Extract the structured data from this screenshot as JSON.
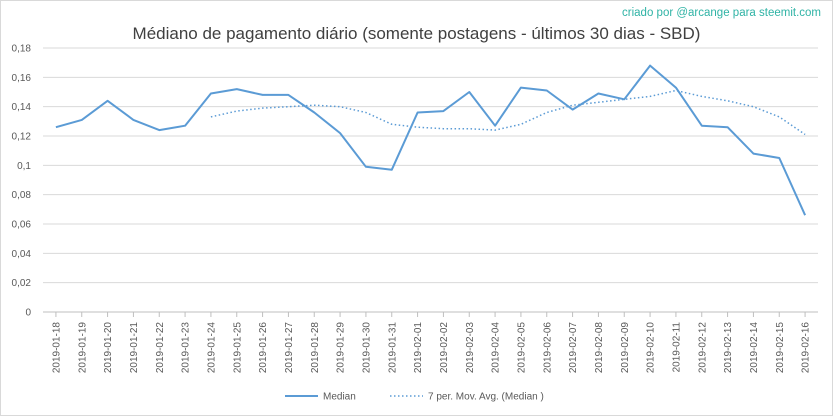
{
  "credit": "criado por @arcange para steemit.com",
  "chart_data": {
    "type": "line",
    "title": "Médiano de pagamento diário (somente postagens - últimos 30 dias - SBD)",
    "xlabel": "",
    "ylabel": "",
    "ylim": [
      0,
      0.18
    ],
    "yticks": [
      "0",
      "0,02",
      "0,04",
      "0,06",
      "0,08",
      "0,1",
      "0,12",
      "0,14",
      "0,16",
      "0,18"
    ],
    "grid": "horizontal",
    "legend_position": "bottom",
    "categories": [
      "2019-01-18",
      "2019-01-19",
      "2019-01-20",
      "2019-01-21",
      "2019-01-22",
      "2019-01-23",
      "2019-01-24",
      "2019-01-25",
      "2019-01-26",
      "2019-01-27",
      "2019-01-28",
      "2019-01-29",
      "2019-01-30",
      "2019-01-31",
      "2019-02-01",
      "2019-02-02",
      "2019-02-03",
      "2019-02-04",
      "2019-02-05",
      "2019-02-06",
      "2019-02-07",
      "2019-02-08",
      "2019-02-09",
      "2019-02-10",
      "2019-02-11",
      "2019-02-12",
      "2019-02-13",
      "2019-02-14",
      "2019-02-15",
      "2019-02-16"
    ],
    "series": [
      {
        "name": "Median",
        "style": "solid",
        "color": "#5b9bd5",
        "values": [
          0.126,
          0.131,
          0.144,
          0.131,
          0.124,
          0.127,
          0.149,
          0.152,
          0.148,
          0.148,
          0.136,
          0.122,
          0.099,
          0.097,
          0.136,
          0.137,
          0.15,
          0.127,
          0.153,
          0.151,
          0.138,
          0.149,
          0.145,
          0.168,
          0.153,
          0.127,
          0.126,
          0.108,
          0.105,
          0.066
        ]
      },
      {
        "name": "7 per. Mov. Avg. (Median )",
        "style": "dotted",
        "color": "#5b9bd5",
        "values": [
          null,
          null,
          null,
          null,
          null,
          null,
          0.133,
          0.137,
          0.139,
          0.14,
          0.141,
          0.14,
          0.136,
          0.128,
          0.126,
          0.125,
          0.125,
          0.124,
          0.128,
          0.136,
          0.141,
          0.143,
          0.145,
          0.147,
          0.151,
          0.147,
          0.144,
          0.14,
          0.133,
          0.121
        ]
      }
    ]
  }
}
